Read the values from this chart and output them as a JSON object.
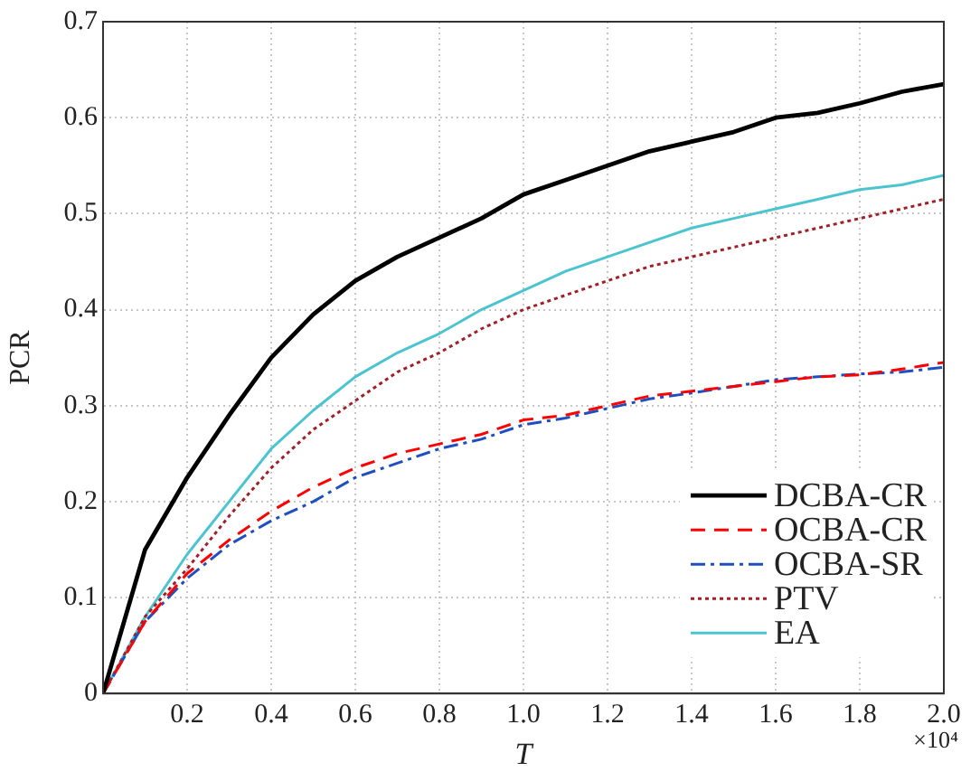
{
  "chart_data": {
    "type": "line",
    "xlabel": "T",
    "ylabel": "PCR",
    "annotations": [
      "×10⁴"
    ],
    "x": [
      0,
      0.1,
      0.2,
      0.3,
      0.4,
      0.5,
      0.6,
      0.7,
      0.8,
      0.9,
      1.0,
      1.1,
      1.2,
      1.3,
      1.4,
      1.5,
      1.6,
      1.7,
      1.8,
      1.9,
      2.0
    ],
    "xlim": [
      0,
      2
    ],
    "xticks": [
      {
        "value": 0,
        "label": null
      },
      {
        "value": 0.2,
        "label": "0.2"
      },
      {
        "value": 0.4,
        "label": "0.4"
      },
      {
        "value": 0.6,
        "label": "0.6"
      },
      {
        "value": 0.8,
        "label": "0.8"
      },
      {
        "value": 1,
        "label": "1.0"
      },
      {
        "value": 1.2,
        "label": "1.2"
      },
      {
        "value": 1.4,
        "label": "1.4"
      },
      {
        "value": 1.6,
        "label": "1.6"
      },
      {
        "value": 1.8,
        "label": "1.8"
      },
      {
        "value": 2,
        "label": "2.0"
      }
    ],
    "ylim": [
      0,
      0.7
    ],
    "yticks": [
      0,
      0.1,
      0.2,
      0.3,
      0.4,
      0.5,
      0.6,
      0.7
    ],
    "grid": true,
    "legend": "bottom right",
    "marker": "none",
    "series": [
      {
        "name": "DCBA-CR",
        "color": "#000000",
        "line_style": "solid",
        "values": [
          0,
          0.15,
          0.225,
          0.29,
          0.35,
          0.395,
          0.43,
          0.455,
          0.475,
          0.495,
          0.52,
          0.535,
          0.55,
          0.565,
          0.575,
          0.585,
          0.6,
          0.605,
          0.615,
          0.627,
          0.635
        ]
      },
      {
        "name": "OCBA-CR",
        "color": "#ff0000",
        "line_style": "dashed",
        "values": [
          0,
          0.075,
          0.125,
          0.16,
          0.19,
          0.215,
          0.235,
          0.25,
          0.26,
          0.27,
          0.285,
          0.29,
          0.3,
          0.31,
          0.315,
          0.32,
          0.325,
          0.33,
          0.332,
          0.338,
          0.345
        ]
      },
      {
        "name": "OCBA-SR",
        "color": "#1f4fbf",
        "line_style": "dashdot",
        "values": [
          0,
          0.075,
          0.12,
          0.155,
          0.18,
          0.2,
          0.225,
          0.24,
          0.255,
          0.265,
          0.28,
          0.287,
          0.297,
          0.307,
          0.313,
          0.32,
          0.327,
          0.33,
          0.333,
          0.335,
          0.34
        ]
      },
      {
        "name": "PTV",
        "color": "#a0202a",
        "line_style": "dotted",
        "values": [
          0,
          0.08,
          0.13,
          0.185,
          0.235,
          0.275,
          0.305,
          0.335,
          0.355,
          0.38,
          0.4,
          0.415,
          0.43,
          0.445,
          0.455,
          0.465,
          0.475,
          0.485,
          0.495,
          0.505,
          0.515
        ]
      },
      {
        "name": "EA",
        "color": "#4cc4d0",
        "line_style": "solid",
        "values": [
          0,
          0.08,
          0.145,
          0.2,
          0.255,
          0.295,
          0.33,
          0.355,
          0.375,
          0.4,
          0.42,
          0.44,
          0.455,
          0.47,
          0.485,
          0.495,
          0.505,
          0.515,
          0.525,
          0.53,
          0.54
        ]
      }
    ]
  }
}
